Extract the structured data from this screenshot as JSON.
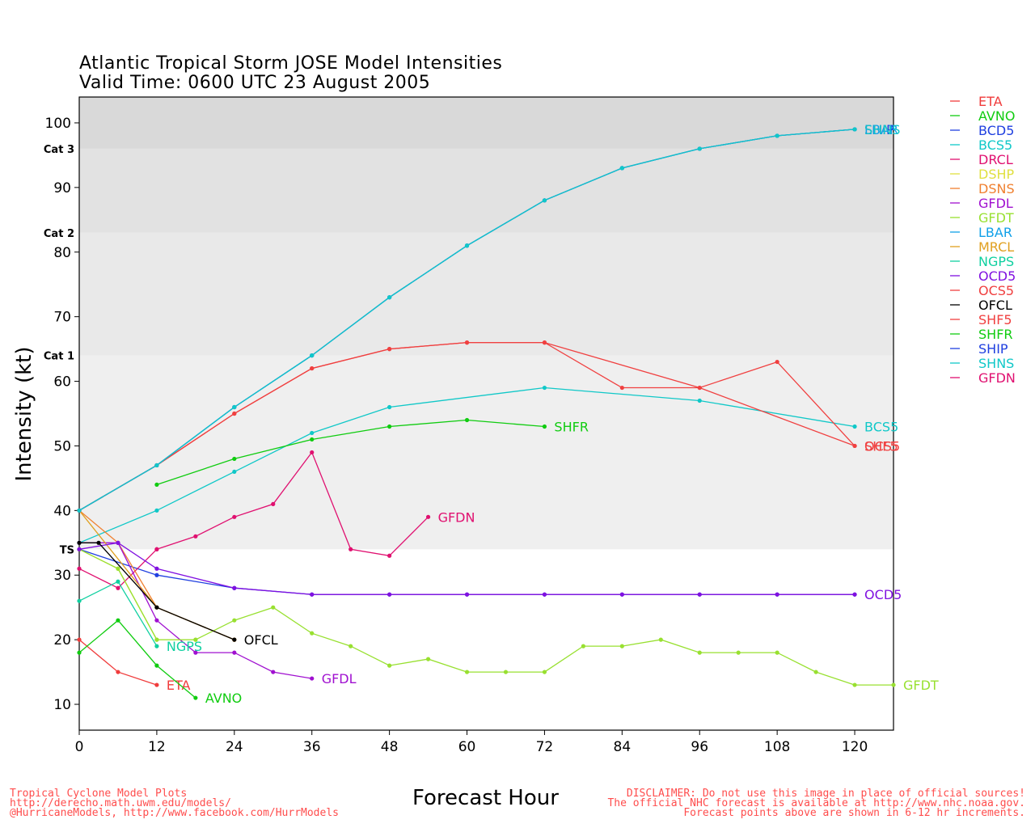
{
  "title": "Atlantic Tropical Storm JOSE Model Intensities",
  "subtitle": "Valid Time: 0600 UTC 23 August 2005",
  "footer": {
    "left": [
      "Tropical Cyclone Model Plots",
      "http://derecho.math.uwm.edu/models/",
      "@HurricaneModels, http://www.facebook.com/HurrModels"
    ],
    "center": "Forecast Hour",
    "right": [
      "DISCLAIMER: Do not use this image in place of official sources!",
      "The official NHC forecast is available at http://www.nhc.noaa.gov.",
      "Forecast points above are shown in 6-12 hr increments."
    ]
  },
  "chart_data": {
    "type": "line",
    "xlabel": "Forecast Hour",
    "ylabel": "Intensity (kt)",
    "xlim": [
      0,
      126
    ],
    "ylim": [
      6,
      104
    ],
    "xticks": [
      0,
      12,
      24,
      36,
      48,
      60,
      72,
      84,
      96,
      108,
      120
    ],
    "yticks": [
      10,
      20,
      30,
      40,
      50,
      60,
      70,
      80,
      90,
      100
    ],
    "bands": [
      {
        "label": "TS",
        "from": 34,
        "to": 64,
        "color": "#efefef"
      },
      {
        "label": "Cat 1",
        "from": 64,
        "to": 83,
        "color": "#e9e9e9"
      },
      {
        "label": "Cat 2",
        "from": 83,
        "to": 96,
        "color": "#e2e2e2"
      },
      {
        "label": "Cat 3",
        "from": 96,
        "to": 104,
        "color": "#d9d9d9"
      }
    ],
    "series": [
      {
        "name": "ETA",
        "color": "#f03c3c",
        "points": [
          [
            0,
            20
          ],
          [
            6,
            15
          ],
          [
            12,
            13
          ]
        ],
        "label": "ETA"
      },
      {
        "name": "AVNO",
        "color": "#10cc10",
        "points": [
          [
            0,
            18
          ],
          [
            6,
            23
          ],
          [
            12,
            16
          ],
          [
            18,
            11
          ]
        ],
        "label": "AVNO"
      },
      {
        "name": "BCD5",
        "color": "#2040e0",
        "points": [
          [
            0,
            34
          ],
          [
            12,
            30
          ],
          [
            24,
            28
          ],
          [
            36,
            27
          ],
          [
            48,
            27
          ],
          [
            60,
            27
          ],
          [
            72,
            27
          ],
          [
            84,
            27
          ],
          [
            96,
            27
          ],
          [
            108,
            27
          ],
          [
            120,
            27
          ]
        ],
        "label": ""
      },
      {
        "name": "BCS5",
        "color": "#10c8c8",
        "points": [
          [
            0,
            35
          ],
          [
            12,
            40
          ],
          [
            24,
            46
          ],
          [
            36,
            52
          ],
          [
            48,
            56
          ],
          [
            72,
            59
          ],
          [
            96,
            57
          ],
          [
            120,
            53
          ]
        ],
        "label": "BCS5"
      },
      {
        "name": "DRCL",
        "color": "#e01070",
        "points": [
          [
            0,
            31
          ],
          [
            6,
            28
          ],
          [
            12,
            34
          ]
        ],
        "label": ""
      },
      {
        "name": "DSHP",
        "color": "#e0e040",
        "points": [
          [
            0,
            34
          ],
          [
            6,
            31
          ],
          [
            12,
            20
          ],
          [
            18,
            20
          ]
        ],
        "label": ""
      },
      {
        "name": "DSNS",
        "color": "#f08030",
        "points": [
          [
            0,
            40
          ],
          [
            6,
            35
          ],
          [
            12,
            25
          ],
          [
            24,
            20
          ]
        ],
        "label": ""
      },
      {
        "name": "GFDL",
        "color": "#a010d0",
        "points": [
          [
            0,
            35
          ],
          [
            6,
            35
          ],
          [
            12,
            23
          ],
          [
            18,
            18
          ],
          [
            24,
            18
          ],
          [
            30,
            15
          ],
          [
            36,
            14
          ]
        ],
        "label": "GFDL"
      },
      {
        "name": "GFDT",
        "color": "#98e030",
        "points": [
          [
            0,
            34
          ],
          [
            6,
            31
          ],
          [
            12,
            20
          ],
          [
            18,
            20
          ],
          [
            24,
            23
          ],
          [
            30,
            25
          ],
          [
            36,
            21
          ],
          [
            42,
            19
          ],
          [
            48,
            16
          ],
          [
            54,
            17
          ],
          [
            60,
            15
          ],
          [
            66,
            15
          ],
          [
            72,
            15
          ],
          [
            78,
            19
          ],
          [
            84,
            19
          ],
          [
            90,
            20
          ],
          [
            96,
            18
          ],
          [
            102,
            18
          ],
          [
            108,
            18
          ],
          [
            114,
            15
          ],
          [
            120,
            13
          ],
          [
            126,
            13
          ]
        ],
        "label": "GFDT"
      },
      {
        "name": "LBAR",
        "color": "#10a0e8",
        "points": [
          [
            0,
            40
          ],
          [
            12,
            47
          ],
          [
            24,
            56
          ],
          [
            36,
            64
          ],
          [
            48,
            73
          ],
          [
            60,
            81
          ],
          [
            72,
            88
          ],
          [
            84,
            93
          ],
          [
            96,
            96
          ],
          [
            108,
            98
          ],
          [
            120,
            99
          ]
        ],
        "label": "LBAR"
      },
      {
        "name": "MRCL",
        "color": "#e0a020",
        "points": [
          [
            0,
            40
          ],
          [
            12,
            25
          ],
          [
            24,
            20
          ]
        ],
        "label": ""
      },
      {
        "name": "NGPS",
        "color": "#10d0a0",
        "points": [
          [
            0,
            26
          ],
          [
            6,
            29
          ],
          [
            12,
            19
          ]
        ],
        "label": "NGPS"
      },
      {
        "name": "OCD5",
        "color": "#8010e0",
        "points": [
          [
            0,
            34
          ],
          [
            6,
            35
          ],
          [
            12,
            31
          ],
          [
            24,
            28
          ],
          [
            36,
            27
          ],
          [
            48,
            27
          ],
          [
            60,
            27
          ],
          [
            72,
            27
          ],
          [
            84,
            27
          ],
          [
            96,
            27
          ],
          [
            108,
            27
          ],
          [
            120,
            27
          ]
        ],
        "label": "OCD5"
      },
      {
        "name": "OCS5",
        "color": "#f04040",
        "points": [
          [
            0,
            40
          ],
          [
            12,
            47
          ],
          [
            24,
            55
          ],
          [
            36,
            62
          ],
          [
            48,
            65
          ],
          [
            60,
            66
          ],
          [
            72,
            66
          ],
          [
            96,
            59
          ],
          [
            120,
            50
          ]
        ],
        "label": "OCS5"
      },
      {
        "name": "OFCL",
        "color": "#000000",
        "points": [
          [
            0,
            35
          ],
          [
            3,
            35
          ],
          [
            12,
            25
          ],
          [
            24,
            20
          ]
        ],
        "label": "OFCL"
      },
      {
        "name": "SHF5",
        "color": "#f04040",
        "points": [
          [
            0,
            40
          ],
          [
            12,
            47
          ],
          [
            24,
            55
          ],
          [
            36,
            62
          ],
          [
            48,
            65
          ],
          [
            60,
            66
          ],
          [
            72,
            66
          ],
          [
            84,
            59
          ],
          [
            96,
            59
          ],
          [
            108,
            63
          ],
          [
            120,
            50
          ]
        ],
        "label": "SHF5"
      },
      {
        "name": "SHFR",
        "color": "#10cc10",
        "points": [
          [
            12,
            44
          ],
          [
            24,
            48
          ],
          [
            36,
            51
          ],
          [
            48,
            53
          ],
          [
            60,
            54
          ],
          [
            72,
            53
          ]
        ],
        "label": "SHFR"
      },
      {
        "name": "SHIP",
        "color": "#2040e0",
        "points": [
          [
            0,
            40
          ],
          [
            12,
            47
          ],
          [
            24,
            56
          ],
          [
            36,
            64
          ],
          [
            48,
            73
          ],
          [
            60,
            81
          ],
          [
            72,
            88
          ],
          [
            84,
            93
          ],
          [
            96,
            96
          ],
          [
            108,
            98
          ],
          [
            120,
            99
          ]
        ],
        "label": "SHIP"
      },
      {
        "name": "SHNS",
        "color": "#10c8c8",
        "points": [
          [
            0,
            40
          ],
          [
            12,
            47
          ],
          [
            24,
            56
          ],
          [
            36,
            64
          ],
          [
            48,
            73
          ],
          [
            60,
            81
          ],
          [
            72,
            88
          ],
          [
            84,
            93
          ],
          [
            96,
            96
          ],
          [
            108,
            98
          ],
          [
            120,
            99
          ]
        ],
        "label": "SHNS"
      },
      {
        "name": "GFDN",
        "color": "#e01070",
        "points": [
          [
            12,
            34
          ],
          [
            18,
            36
          ],
          [
            24,
            39
          ],
          [
            30,
            41
          ],
          [
            36,
            49
          ],
          [
            42,
            34
          ],
          [
            48,
            33
          ],
          [
            54,
            39
          ]
        ],
        "label": "GFDN"
      }
    ]
  }
}
